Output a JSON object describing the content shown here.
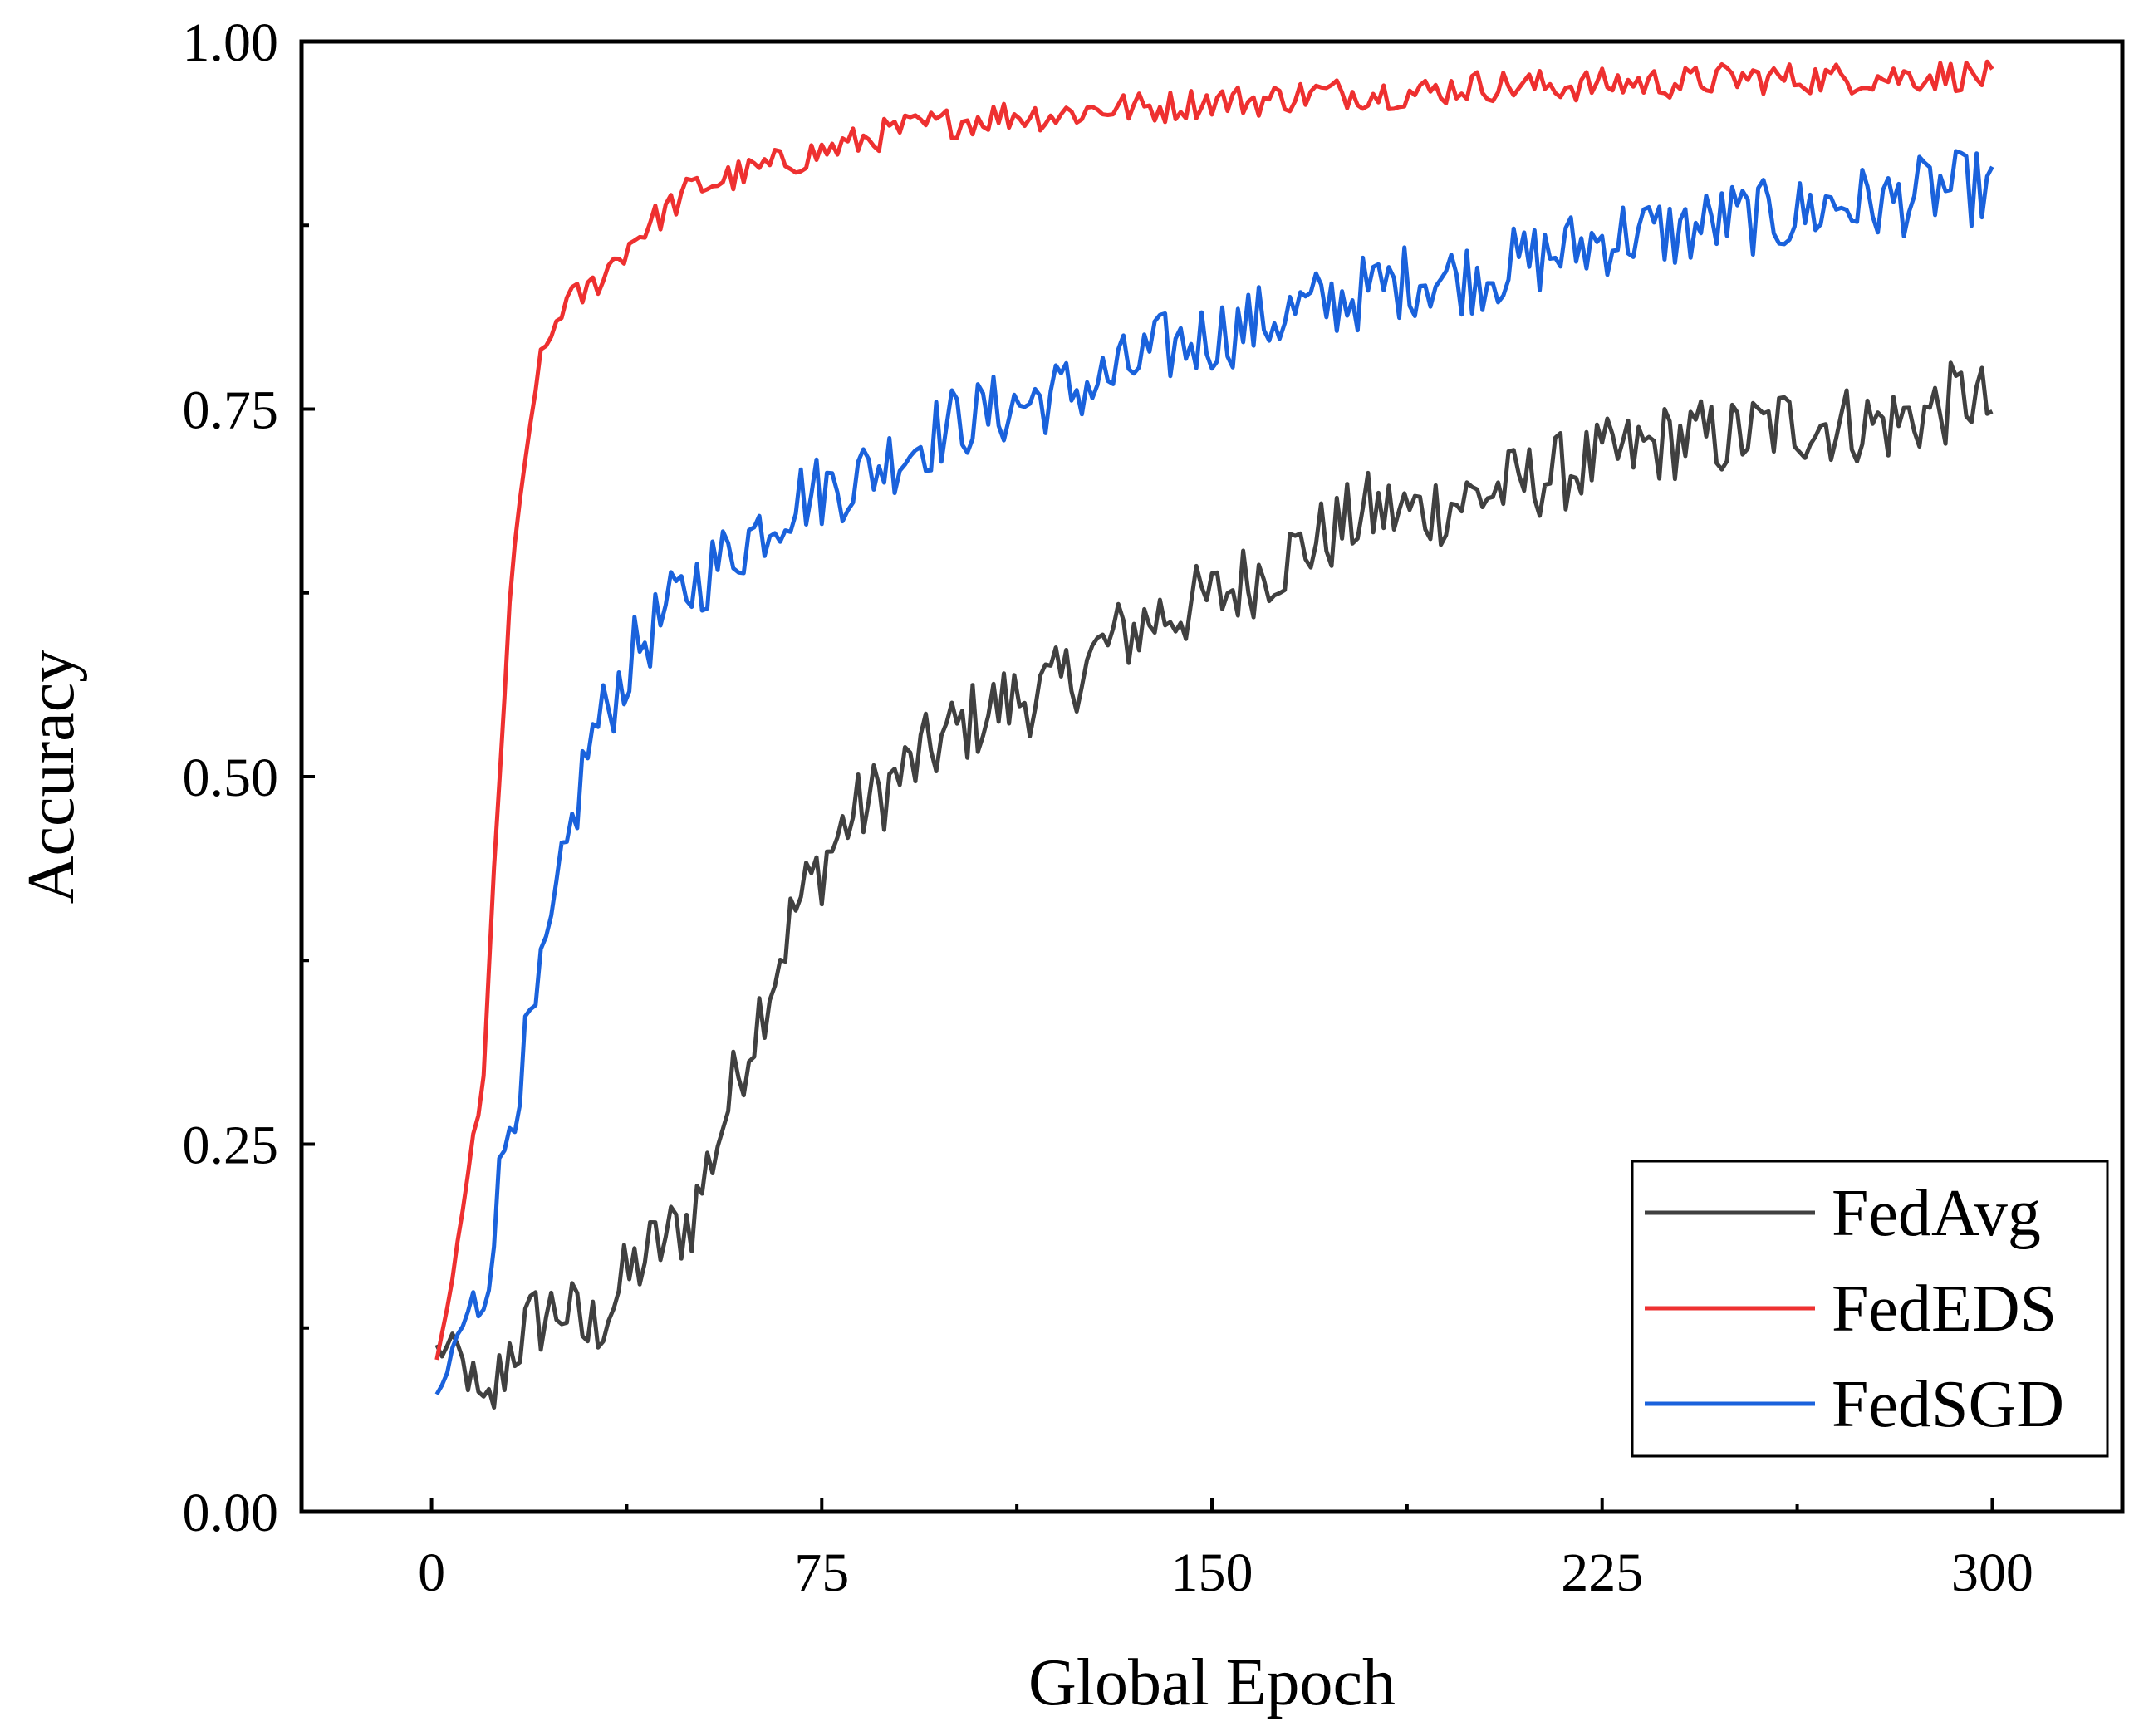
{
  "chart_data": {
    "type": "line",
    "xlabel": "Global Epoch",
    "ylabel": "Accuracy",
    "xlim": [
      -25,
      325
    ],
    "ylim": [
      0,
      1.0
    ],
    "xticks": [
      0,
      75,
      150,
      225,
      300
    ],
    "xtick_labels": [
      "0",
      "75",
      "150",
      "225",
      "300"
    ],
    "yticks": [
      0,
      0.25,
      0.5,
      0.75,
      1.0
    ],
    "ytick_labels": [
      "0.00",
      "0.25",
      "0.50",
      "0.75",
      "1.00"
    ],
    "grid": false,
    "legend_position": "bottom-right",
    "x": [
      1,
      5,
      10,
      15,
      20,
      25,
      30,
      40,
      50,
      60,
      70,
      80,
      90,
      100,
      110,
      120,
      130,
      140,
      150,
      160,
      170,
      180,
      190,
      200,
      210,
      220,
      230,
      240,
      250,
      260,
      270,
      280,
      290,
      295,
      300
    ],
    "series": [
      {
        "name": "FedAvg",
        "color": "#404040",
        "values": [
          0.11,
          0.11,
          0.06,
          0.11,
          0.13,
          0.14,
          0.12,
          0.17,
          0.2,
          0.31,
          0.41,
          0.47,
          0.5,
          0.53,
          0.55,
          0.56,
          0.59,
          0.61,
          0.62,
          0.64,
          0.66,
          0.68,
          0.68,
          0.69,
          0.7,
          0.71,
          0.72,
          0.73,
          0.73,
          0.74,
          0.74,
          0.74,
          0.75,
          0.76,
          0.75
        ]
      },
      {
        "name": "FedEDS",
        "color": "#ee3030",
        "values": [
          0.1,
          0.18,
          0.3,
          0.62,
          0.77,
          0.82,
          0.83,
          0.87,
          0.9,
          0.91,
          0.92,
          0.93,
          0.94,
          0.945,
          0.95,
          0.95,
          0.955,
          0.955,
          0.96,
          0.96,
          0.965,
          0.965,
          0.965,
          0.97,
          0.97,
          0.97,
          0.972,
          0.972,
          0.975,
          0.975,
          0.975,
          0.976,
          0.977,
          0.977,
          0.975
        ]
      },
      {
        "name": "FedSGD",
        "color": "#1a62dc",
        "values": [
          0.07,
          0.12,
          0.15,
          0.27,
          0.34,
          0.43,
          0.52,
          0.59,
          0.63,
          0.66,
          0.69,
          0.7,
          0.72,
          0.74,
          0.75,
          0.76,
          0.77,
          0.79,
          0.8,
          0.81,
          0.82,
          0.83,
          0.84,
          0.84,
          0.85,
          0.86,
          0.87,
          0.87,
          0.88,
          0.88,
          0.89,
          0.89,
          0.9,
          0.9,
          0.9
        ]
      }
    ]
  }
}
